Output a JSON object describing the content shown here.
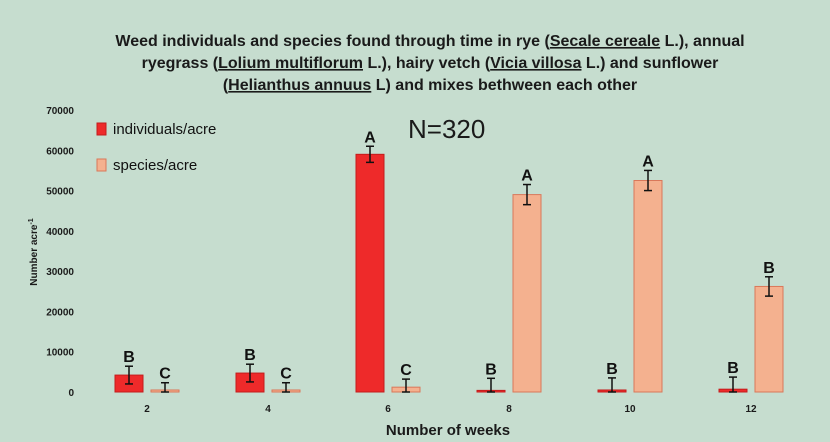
{
  "chart_data": {
    "type": "bar",
    "title": {
      "line1": [
        {
          "t": "Weed individuals and species found through time in rye (",
          "u": false
        },
        {
          "t": "Secale cereale",
          "u": true
        },
        {
          "t": " L.), annual",
          "u": false
        }
      ],
      "line2": [
        {
          "t": "ryegrass (",
          "u": false
        },
        {
          "t": "Lolium multiflorum",
          "u": true
        },
        {
          "t": " L.), hairy vetch (",
          "u": false
        },
        {
          "t": "Vicia villosa",
          "u": true
        },
        {
          "t": " L.) and sunflower",
          "u": false
        }
      ],
      "line3": [
        {
          "t": "(",
          "u": false
        },
        {
          "t": "Helianthus annuus",
          "u": true
        },
        {
          "t": " L) and mixes bethween each other",
          "u": false
        }
      ]
    },
    "annotation": "N=320",
    "xlabel": "Number of weeks",
    "ylabel_main": "Number acre",
    "ylabel_sup": "-1",
    "ylim": [
      0,
      70000
    ],
    "yticks": [
      "0",
      "10000",
      "20000",
      "30000",
      "40000",
      "50000",
      "60000",
      "70000"
    ],
    "ytick_values": [
      0,
      10000,
      20000,
      30000,
      40000,
      50000,
      60000,
      70000
    ],
    "categories": [
      "2",
      "4",
      "6",
      "8",
      "10",
      "12"
    ],
    "series": [
      {
        "name": "individuals/acre",
        "color": "#ee2a2a",
        "values": [
          4200,
          4700,
          59000,
          400,
          500,
          700
        ],
        "errors": [
          2200,
          2200,
          2000,
          3000,
          3000,
          3000
        ],
        "letters": [
          "B",
          "B",
          "A",
          "B",
          "B",
          "B"
        ]
      },
      {
        "name": "species/acre",
        "color": "#f4b18f",
        "values": [
          500,
          500,
          1200,
          49000,
          52500,
          26200
        ],
        "errors": [
          1800,
          1800,
          2000,
          2500,
          2500,
          2400
        ],
        "letters": [
          "C",
          "C",
          "C",
          "A",
          "A",
          "B"
        ]
      }
    ],
    "grid": false,
    "legend_position": "top-left"
  }
}
